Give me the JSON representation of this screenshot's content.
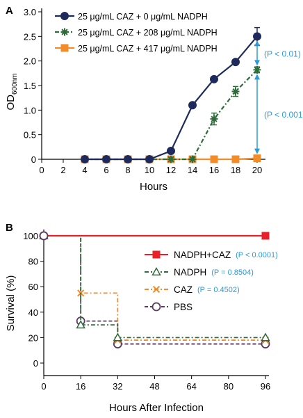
{
  "colors": {
    "navy": "#1f2a5c",
    "green": "#2e6b3a",
    "orange": "#f28c28",
    "red": "#e8202a",
    "purple": "#5a3a5e",
    "blue": "#2b9bd8",
    "axis": "#000000"
  },
  "chart_data": [
    {
      "panel": "A",
      "type": "line",
      "xlabel": "Hours",
      "ylabel_main": "OD",
      "ylabel_sub": "600nm",
      "xlim": [
        0,
        20
      ],
      "ylim": [
        0,
        3.0
      ],
      "xticks": [
        "0",
        "2",
        "4",
        "6",
        "8",
        "10",
        "12",
        "14",
        "16",
        "18",
        "20"
      ],
      "yticks": [
        "0",
        "0.5",
        "1.0",
        "1.5",
        "2.0",
        "2.5",
        "3.0"
      ],
      "legend_placement": "top-left",
      "series": [
        {
          "name": "25 μg/mL CAZ + 0 μg/mL NADPH",
          "color": "#1f2a5c",
          "marker": "circle",
          "dash": "solid",
          "x": [
            4,
            6,
            8,
            10,
            12,
            14,
            16,
            18,
            20
          ],
          "y": [
            0,
            0,
            0,
            0,
            0.17,
            1.1,
            1.63,
            1.98,
            2.5
          ],
          "err": [
            0,
            0,
            0,
            0,
            0,
            0,
            0,
            0,
            0.18
          ]
        },
        {
          "name": "25 μg/mL CAZ + 208 μg/mL NADPH",
          "color": "#2e6b3a",
          "marker": "asterisk",
          "dash": "dashdot",
          "x": [
            4,
            6,
            8,
            10,
            12,
            14,
            16,
            18,
            20
          ],
          "y": [
            0,
            0,
            0,
            0,
            0,
            0,
            0.82,
            1.38,
            1.82
          ],
          "err": [
            0,
            0,
            0,
            0,
            0,
            0,
            0.12,
            0.1,
            0.06
          ]
        },
        {
          "name": "25 μg/mL CAZ + 417 μg/mL NADPH",
          "color": "#f28c28",
          "marker": "square",
          "dash": "solid",
          "x": [
            4,
            6,
            8,
            10,
            12,
            14,
            16,
            18,
            20
          ],
          "y": [
            0,
            0,
            0,
            0,
            0,
            0,
            0,
            0,
            0.02
          ],
          "err": [
            0,
            0,
            0,
            0,
            0,
            0,
            0,
            0,
            0
          ]
        }
      ],
      "annotations": [
        {
          "label": "(P < 0.01)",
          "y_from": 2.5,
          "y_to": 1.82
        },
        {
          "label": "(P < 0.001)",
          "y_from": 1.82,
          "y_to": 0.02
        }
      ]
    },
    {
      "panel": "B",
      "type": "line",
      "step": true,
      "xlabel": "Hours After Infection",
      "ylabel": "Survival (%)",
      "xticks": [
        "0",
        "16",
        "32",
        "48",
        "64",
        "80",
        "96"
      ],
      "xvals": [
        0,
        16,
        32,
        48,
        64,
        80,
        96
      ],
      "xlim": [
        0,
        96
      ],
      "yticks": [
        "0",
        "20",
        "40",
        "60",
        "80",
        "100"
      ],
      "ylim": [
        0,
        100
      ],
      "legend_placement": "right",
      "series": [
        {
          "name": "NADPH+CAZ",
          "pvalue": "(P < 0.0001)",
          "color": "#e8202a",
          "marker": "square",
          "dash": "solid",
          "x": [
            0,
            96
          ],
          "y": [
            100,
            100
          ]
        },
        {
          "name": "NADPH",
          "pvalue": "(P = 0.8504)",
          "color": "#2e6b3a",
          "marker": "triangle",
          "dash": "dashdot",
          "x": [
            0,
            16,
            32,
            96
          ],
          "y": [
            100,
            30,
            20,
            20
          ]
        },
        {
          "name": "CAZ",
          "pvalue": "(P = 0.4502)",
          "color": "#f28c28",
          "marker": "x",
          "dash": "dashdot",
          "x": [
            0,
            16,
            32,
            96
          ],
          "y": [
            100,
            55,
            18,
            18
          ]
        },
        {
          "name": "PBS",
          "pvalue": "",
          "color": "#5a3a5e",
          "marker": "circle",
          "dash": "dashed",
          "x": [
            0,
            16,
            32,
            96
          ],
          "y": [
            100,
            33,
            15,
            15
          ]
        }
      ]
    }
  ]
}
